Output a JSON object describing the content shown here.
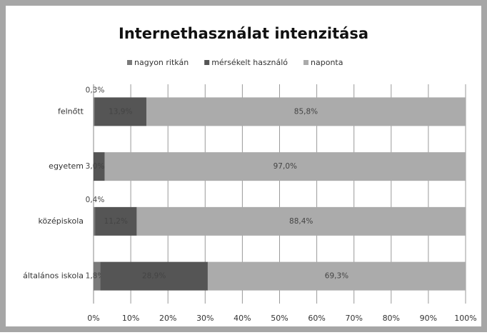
{
  "chart_data": {
    "type": "stacked-bar-horizontal",
    "title": "Internethasználat intenzitása",
    "categories": [
      "felnőtt",
      "egyetem",
      "középiskola",
      "általános iskola"
    ],
    "series": [
      {
        "name": "nagyon ritkán",
        "color": "#7a7a7a",
        "values": [
          0.3,
          null,
          0.4,
          1.8
        ],
        "value_labels": [
          "0,3%",
          null,
          "0,4%",
          "1,8%"
        ]
      },
      {
        "name": "mérsékelt használó",
        "color": "#555555",
        "values": [
          13.9,
          3.0,
          11.2,
          28.9
        ],
        "value_labels": [
          "13,9%",
          "3,0%",
          "11,2%",
          "28,9%"
        ]
      },
      {
        "name": "naponta",
        "color": "#ababab",
        "values": [
          85.8,
          97.0,
          88.4,
          69.3
        ],
        "value_labels": [
          "85,8%",
          "97,0%",
          "88,4%",
          "69,3%"
        ]
      }
    ],
    "xlim": [
      0,
      100
    ],
    "xticks": [
      {
        "value": 0,
        "label": "0%"
      },
      {
        "value": 10,
        "label": "10%"
      },
      {
        "value": 20,
        "label": "20%"
      },
      {
        "value": 30,
        "label": "30%"
      },
      {
        "value": 40,
        "label": "40%"
      },
      {
        "value": 50,
        "label": "50%"
      },
      {
        "value": 60,
        "label": "60%"
      },
      {
        "value": 70,
        "label": "70%"
      },
      {
        "value": 80,
        "label": "80%"
      },
      {
        "value": 90,
        "label": "90%"
      },
      {
        "value": 100,
        "label": "100%"
      }
    ],
    "grid": true,
    "legend": "top"
  }
}
